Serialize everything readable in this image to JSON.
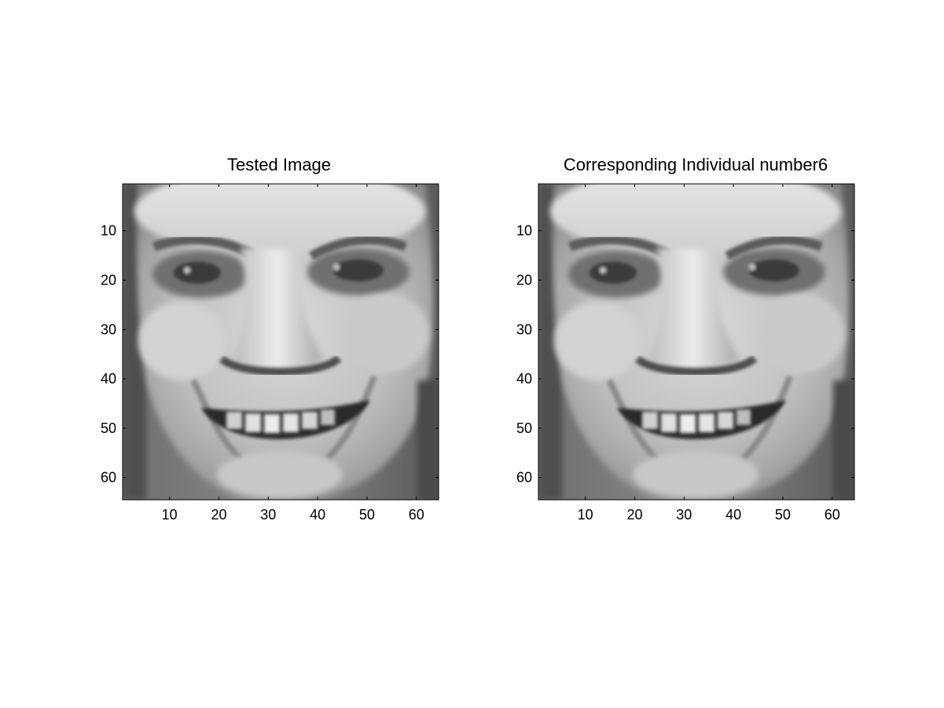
{
  "figure": {
    "background": "#ffffff",
    "colormap": "gray",
    "panels": [
      {
        "title": "Tested Image",
        "image_description": "grayscale face",
        "xlim": [
          0.5,
          64.5
        ],
        "ylim": [
          0.5,
          64.5
        ],
        "y_direction": "reversed",
        "x_ticks": [
          "10",
          "20",
          "30",
          "40",
          "50",
          "60"
        ],
        "y_ticks": [
          "10",
          "20",
          "30",
          "40",
          "50",
          "60"
        ]
      },
      {
        "title": "Corresponding Individual number6",
        "image_description": "grayscale face",
        "xlim": [
          0.5,
          64.5
        ],
        "ylim": [
          0.5,
          64.5
        ],
        "y_direction": "reversed",
        "x_ticks": [
          "10",
          "20",
          "30",
          "40",
          "50",
          "60"
        ],
        "y_ticks": [
          "10",
          "20",
          "30",
          "40",
          "50",
          "60"
        ]
      }
    ]
  },
  "chart_data": [
    {
      "type": "heatmap",
      "title": "Tested Image",
      "xlabel": "",
      "ylabel": "",
      "xlim": [
        0.5,
        64.5
      ],
      "ylim": [
        0.5,
        64.5
      ],
      "x_ticks": [
        10,
        20,
        30,
        40,
        50,
        60
      ],
      "y_ticks": [
        10,
        20,
        30,
        40,
        50,
        60
      ],
      "grid": false,
      "legend": "none"
    },
    {
      "type": "heatmap",
      "title": "Corresponding Individual number6",
      "xlabel": "",
      "ylabel": "",
      "xlim": [
        0.5,
        64.5
      ],
      "ylim": [
        0.5,
        64.5
      ],
      "x_ticks": [
        10,
        20,
        30,
        40,
        50,
        60
      ],
      "y_ticks": [
        10,
        20,
        30,
        40,
        50,
        60
      ],
      "grid": false,
      "legend": "none"
    }
  ]
}
